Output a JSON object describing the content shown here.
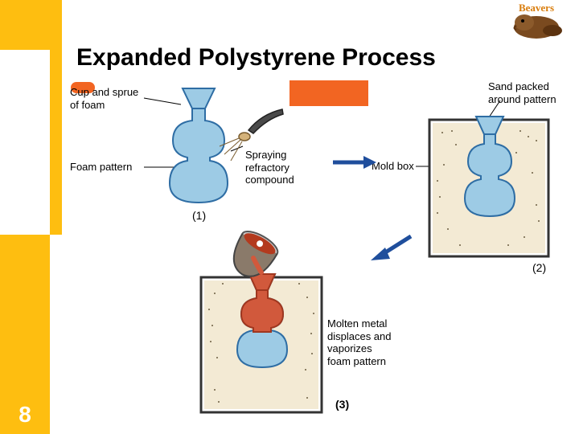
{
  "slide": {
    "number": "8",
    "title": "Expanded Polystyrene Process"
  },
  "colors": {
    "sidebar": "#febe10",
    "bullet": "#f26522",
    "foam": "#9dcbe5",
    "foamStroke": "#2e6da4",
    "sand": "#f3ead4",
    "sandDots": "#6b5d40",
    "moldStroke": "#333333",
    "metal": "#d1593c",
    "metalStroke": "#a0371f",
    "cup": "#8a7a6a",
    "arrowBlue": "#1f4e9c",
    "black": "#000000",
    "white": "#ffffff"
  },
  "labels": {
    "cupSprue": "Cup and sprue\nof foam",
    "foamPattern": "Foam pattern",
    "spraying": "Spraying\nrefractory\ncompound",
    "sandPacked": "Sand packed\naround pattern",
    "moldBox": "Mold box",
    "molten": "Molten metal\ndisplaces and\nvaporizes\nfoam pattern",
    "step1": "(1)",
    "step2": "(2)",
    "step3": "(3)"
  },
  "logo": {
    "text": "Beavers"
  }
}
